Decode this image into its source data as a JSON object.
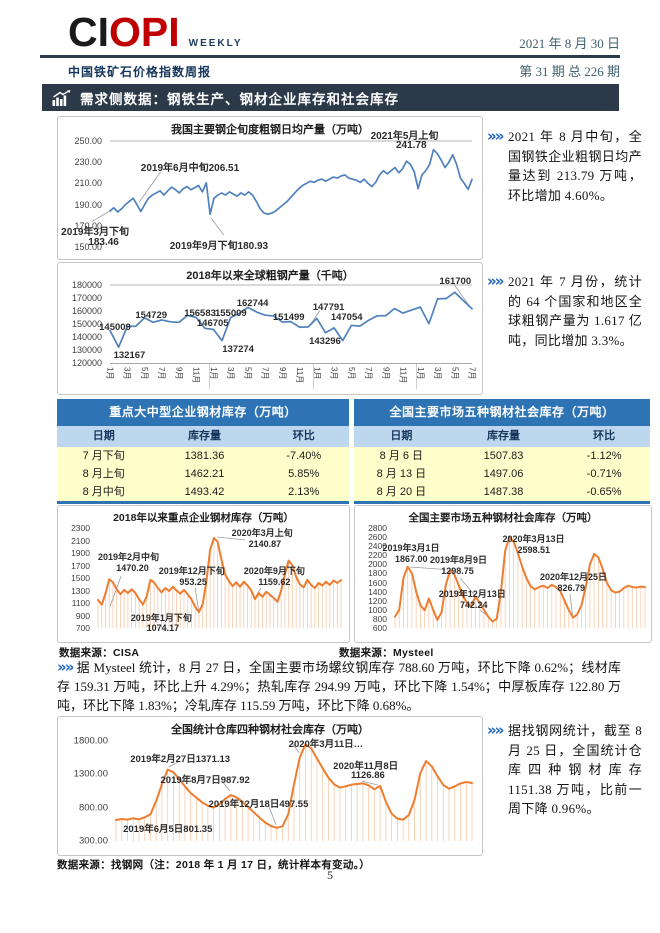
{
  "header": {
    "logo_primary": "CI",
    "logo_secondary": "OPI",
    "logo_weekly": "WEEKLY",
    "subtitle": "中国铁矿石价格指数周报",
    "date": "2021 年 8 月 30 日",
    "issue": "第 31 期 总 226 期"
  },
  "banner": {
    "title": "需求侧数据：钢铁生产、钢材企业库存和社会库存"
  },
  "ui": {
    "marker": "»»"
  },
  "bullets": [
    {
      "text": "2021 年 8 月中旬，全国钢铁企业粗钢日均产量达到 213.79 万吨，环比增加 4.60%。"
    },
    {
      "text": "2021 年 7 月份，统计的 64 个国家和地区全球粗钢产量为 1.617 亿吨，同比增加 3.3%。"
    },
    {
      "text": "据 Mysteel 统计，8 月 27 日，全国主要市场螺纹钢库存 788.60 万吨，环比下降 0.62%；线材库存 159.31 万吨，环比上升 4.29%；热轧库存 294.99 万吨，环比下降 1.54%；中厚板库存 122.80 万吨，环比下降 1.83%；冷轧库存 115.59 万吨，环比下降 0.68%。"
    },
    {
      "text": "据找钢网统计，截至 8 月 25 日，全国统计仓库四种钢材库存 1151.38 万吨，比前一周下降 0.96%。"
    }
  ],
  "tables": [
    {
      "title": "重点大中型企业钢材库存（万吨）",
      "headers": [
        "日期",
        "库存量",
        "环比"
      ],
      "rows": [
        [
          "7 月下旬",
          "1381.36",
          "-7.40%"
        ],
        [
          "8 月上旬",
          "1462.21",
          "5.85%"
        ],
        [
          "8 月中旬",
          "1493.42",
          "2.13%"
        ]
      ]
    },
    {
      "title": "全国主要市场五种钢材社会库存（万吨）",
      "headers": [
        "日期",
        "库存量",
        "环比"
      ],
      "rows": [
        [
          "8 月 6 日",
          "1507.83",
          "-1.12%"
        ],
        [
          "8 月 13 日",
          "1497.06",
          "-0.71%"
        ],
        [
          "8 月 20 日",
          "1487.38",
          "-0.65%"
        ]
      ]
    }
  ],
  "sources": {
    "cisa": "数据来源：CISA",
    "mysteel": "数据来源：Mysteel",
    "zhaogangwang": "数据来源：找钢网（注：2018 年 1 月 17 日，统计样本有变动。）"
  },
  "footer": {
    "page_number": "5"
  },
  "colors": {
    "logo_red": "#c00000",
    "banner_bg": "#2c3948",
    "blue_line": "#4f81bd",
    "orange_line": "#ed7d31",
    "orange_drop": "#f6c9a8",
    "table_title_bg": "#2e74b5",
    "table_head_bg": "#bdd7ee",
    "table_row_bg": "#ffffcc",
    "marker_blue": "#1b62b7",
    "header_text": "#41616e"
  },
  "chart_data": [
    {
      "type": "line",
      "title": "我国主要钢企旬度粗钢日均产量（万吨）",
      "ylabel": "万吨",
      "ylim": [
        150,
        250
      ],
      "grid_top": true,
      "color": "#4f81bd",
      "line_width": 1.7,
      "yticks": [
        [
          250,
          "250.00"
        ],
        [
          230,
          "230.00"
        ],
        [
          210,
          "210.00"
        ],
        [
          190,
          "190.00"
        ],
        [
          170,
          "170.00"
        ],
        [
          150,
          "150.00"
        ]
      ],
      "values": [
        184,
        187,
        183,
        186,
        190,
        193,
        196,
        190,
        183.46,
        190,
        196,
        199,
        201,
        203,
        199,
        203,
        206.51,
        204,
        201,
        205,
        207,
        204,
        206,
        208,
        202,
        210.5,
        180.93,
        196,
        199,
        201,
        199,
        202,
        200,
        198,
        201,
        199,
        202,
        199,
        193,
        186,
        182,
        181,
        182,
        184,
        187,
        190,
        193,
        197,
        201,
        205,
        208,
        210,
        212,
        211,
        213,
        214,
        212,
        214,
        216,
        215,
        217,
        218,
        215,
        214,
        213,
        211,
        214,
        210,
        207,
        211,
        218,
        222,
        219,
        222,
        225,
        220,
        224,
        231,
        228,
        221,
        205,
        218,
        222,
        228,
        241.78,
        238,
        232,
        225,
        230,
        237,
        228,
        215,
        210,
        204.4,
        213.79
      ],
      "annotations": [
        {
          "x": 72,
          "y": -13,
          "t": "2021年5月上旬"
        },
        {
          "x": 79,
          "y": -1,
          "t": "241.78"
        },
        {
          "x": 8.5,
          "y": 17,
          "t": "2019年6月中旬206.51"
        },
        {
          "x": -13.5,
          "y": 77,
          "t": "2019年3月下旬"
        },
        {
          "x": -6,
          "y": 91,
          "t": "183.46"
        },
        {
          "x": 16.5,
          "y": 91,
          "t": "2019年9月下旬180.93"
        }
      ],
      "leaders": [
        [
          14,
          29,
          8,
          58
        ],
        [
          -5,
          76,
          0.5,
          65
        ],
        [
          28,
          73,
          31.5,
          89
        ]
      ]
    },
    {
      "type": "line",
      "title": "2018年以来全球粗钢产量（千吨）",
      "ylabel": "千吨",
      "ylim": [
        120000,
        180000
      ],
      "grid_top": true,
      "color": "#4f81bd",
      "line_width": 1.7,
      "yticks": [
        [
          180000,
          "180000"
        ],
        [
          170000,
          "170000"
        ],
        [
          160000,
          "160000"
        ],
        [
          150000,
          "150000"
        ],
        [
          140000,
          "140000"
        ],
        [
          130000,
          "130000"
        ],
        [
          120000,
          "120000"
        ]
      ],
      "values": [
        145009,
        132167,
        148100,
        148300,
        154729,
        151300,
        153100,
        151700,
        151300,
        156583,
        155009,
        146705,
        145800,
        137274,
        155000,
        158100,
        162744,
        159200,
        156800,
        156200,
        151499,
        151800,
        147500,
        147791,
        154300,
        143296,
        147054,
        137200,
        148900,
        148400,
        152800,
        156300,
        156400,
        161900,
        158400,
        160700,
        163000,
        150300,
        169300,
        169600,
        174400,
        168000,
        161700
      ],
      "xticks": [
        [
          0,
          "1月"
        ],
        [
          2,
          "3月"
        ],
        [
          4,
          "5月"
        ],
        [
          6,
          "7月"
        ],
        [
          8,
          "9月"
        ],
        [
          10,
          "11月"
        ],
        [
          12,
          "1月"
        ],
        [
          14,
          "3月"
        ],
        [
          16,
          "5月"
        ],
        [
          18,
          "7月"
        ],
        [
          20,
          "9月"
        ],
        [
          22,
          "11月"
        ],
        [
          24,
          "1月"
        ],
        [
          26,
          "3月"
        ],
        [
          28,
          "5月"
        ],
        [
          30,
          "7月"
        ],
        [
          32,
          "9月"
        ],
        [
          34,
          "11月"
        ],
        [
          36,
          "1月"
        ],
        [
          38,
          "3月"
        ],
        [
          40,
          "5月"
        ],
        [
          42,
          "7月"
        ]
      ],
      "xseps": [
        27.38,
        55.95,
        84.52
      ],
      "annotations": [
        {
          "x": -3,
          "y": 48,
          "t": "145009"
        },
        {
          "x": 1,
          "y": 83,
          "t": "132167"
        },
        {
          "x": 7,
          "y": 32,
          "t": "154729"
        },
        {
          "x": 20.5,
          "y": 29,
          "t": "156583"
        },
        {
          "x": 29,
          "y": 29,
          "t": "155009"
        },
        {
          "x": 24,
          "y": 42,
          "t": "146705"
        },
        {
          "x": 35,
          "y": 17,
          "t": "162744"
        },
        {
          "x": 31,
          "y": 76,
          "t": "137274"
        },
        {
          "x": 45,
          "y": 34,
          "t": "151499"
        },
        {
          "x": 56,
          "y": 22,
          "t": "147791"
        },
        {
          "x": 61,
          "y": 35,
          "t": "147054"
        },
        {
          "x": 55,
          "y": 65,
          "t": "143296"
        },
        {
          "x": 91,
          "y": -12,
          "t": "161700"
        }
      ],
      "leaders": [
        [
          58,
          33,
          55.3,
          51
        ],
        [
          95,
          -1,
          99.3,
          27
        ]
      ]
    },
    {
      "type": "line",
      "title": "2018年以来重点企业钢材库存（万吨）",
      "ylabel": "万吨",
      "ylim": [
        700,
        2300
      ],
      "color": "#ed7d31",
      "line_width": 2,
      "drops": true,
      "drop_color": "#f6c9a8",
      "yticks": [
        [
          2300,
          "2300"
        ],
        [
          2100,
          "2100"
        ],
        [
          1900,
          "1900"
        ],
        [
          1700,
          "1700"
        ],
        [
          1500,
          "1500"
        ],
        [
          1300,
          "1300"
        ],
        [
          1100,
          "1100"
        ],
        [
          900,
          "900"
        ],
        [
          700,
          "700"
        ]
      ],
      "values": [
        1150,
        1074,
        1250,
        1480,
        1430,
        1320,
        1240,
        1310,
        1260,
        1320,
        1260,
        1160,
        1074.17,
        1200,
        1470.2,
        1430,
        1340,
        1270,
        1340,
        1290,
        1360,
        1300,
        1250,
        1310,
        1240,
        1160,
        1040,
        953.25,
        1080,
        1450,
        1950,
        2140.87,
        2080,
        1800,
        1560,
        1450,
        1370,
        1430,
        1360,
        1440,
        1380,
        1300,
        1159.62,
        1260,
        1200,
        1280,
        1230,
        1180,
        1120,
        1300,
        1560,
        1780,
        1700,
        1520,
        1400,
        1350,
        1470,
        1390,
        1340,
        1420,
        1380,
        1440,
        1390,
        1460,
        1420,
        1465
      ],
      "annotations": [
        {
          "x": 0,
          "y": 22,
          "t": "2019年2月中旬"
        },
        {
          "x": 7.5,
          "y": 35,
          "t": "1470.20"
        },
        {
          "x": 55,
          "y": -2,
          "t": "2020年3月上旬"
        },
        {
          "x": 62,
          "y": 11,
          "t": "2140.87"
        },
        {
          "x": 25,
          "y": 36,
          "t": "2019年12月下旬"
        },
        {
          "x": 33.5,
          "y": 49,
          "t": "953.25"
        },
        {
          "x": 60,
          "y": 36,
          "t": "2020年9月下旬"
        },
        {
          "x": 66,
          "y": 49,
          "t": "1159.62"
        },
        {
          "x": 13.5,
          "y": 83,
          "t": "2019年1月下旬"
        },
        {
          "x": 20,
          "y": 95,
          "t": "1074.17"
        }
      ],
      "leaders": [
        [
          9.5,
          48,
          5,
          78
        ],
        [
          60.5,
          12,
          49,
          9
        ],
        [
          40,
          60,
          41.4,
          82
        ],
        [
          67,
          60,
          64.8,
          69
        ]
      ]
    },
    {
      "type": "line",
      "title": "全国主要市场五种钢材社会库存（万吨）",
      "ylabel": "万吨",
      "ylim": [
        600,
        2800
      ],
      "color": "#ed7d31",
      "line_width": 2,
      "drops": true,
      "drop_color": "#f6c9a8",
      "yticks": [
        [
          2800,
          "2800"
        ],
        [
          2600,
          "2600"
        ],
        [
          2400,
          "2400"
        ],
        [
          2200,
          "2200"
        ],
        [
          2000,
          "2000"
        ],
        [
          1800,
          "1800"
        ],
        [
          1600,
          "1600"
        ],
        [
          1400,
          "1400"
        ],
        [
          1200,
          "1200"
        ],
        [
          1000,
          "1000"
        ],
        [
          800,
          "800"
        ],
        [
          600,
          "600"
        ]
      ],
      "values": [
        850,
        1000,
        1700,
        1950,
        1800,
        1400,
        1100,
        990,
        1250,
        1000,
        780,
        950,
        1550,
        1867,
        1780,
        1550,
        1320,
        1150,
        1080,
        1298.75,
        1150,
        1000,
        850,
        742.24,
        800,
        1400,
        2300,
        2598.51,
        2500,
        2250,
        1950,
        1700,
        1520,
        1450,
        1500,
        1530,
        1480,
        1550,
        1500,
        1420,
        1200,
        1000,
        826.79,
        900,
        1100,
        1500,
        2000,
        2230,
        2150,
        1900,
        1600,
        1430,
        1380,
        1400,
        1480,
        1530,
        1500,
        1490,
        1510,
        1500
      ],
      "annotations": [
        {
          "x": -5,
          "y": 13,
          "t": "2019年3月1日"
        },
        {
          "x": 0,
          "y": 26,
          "t": "1867.00"
        },
        {
          "x": 14,
          "y": 25,
          "t": "2019年8月9日"
        },
        {
          "x": 18.5,
          "y": 38,
          "t": "1298.75"
        },
        {
          "x": 43,
          "y": 4,
          "t": "2020年3月13日"
        },
        {
          "x": 49,
          "y": 17,
          "t": "2598.51"
        },
        {
          "x": 17.5,
          "y": 59,
          "t": "2019年12月13日"
        },
        {
          "x": 26,
          "y": 72,
          "t": "742.24"
        },
        {
          "x": 58,
          "y": 42,
          "t": "2020年12月25日"
        },
        {
          "x": 65,
          "y": 55,
          "t": "826.79"
        }
      ],
      "leaders": [
        [
          6,
          39,
          20,
          41.5
        ],
        [
          26,
          50,
          31.5,
          66
        ],
        [
          48,
          15,
          46,
          11
        ],
        [
          34,
          82,
          38.5,
          91
        ],
        [
          70,
          66,
          71,
          87
        ]
      ]
    },
    {
      "type": "line",
      "title": "全国统计仓库四种钢材社会库存（万吨）",
      "ylabel": "万吨",
      "ylim": [
        300,
        1800
      ],
      "color": "#ed7d31",
      "line_width": 2,
      "drops": true,
      "drop_color": "#f6c9a8",
      "yticks": [
        [
          1800,
          "1800.00"
        ],
        [
          1300,
          "1300.00"
        ],
        [
          800,
          "800.00"
        ],
        [
          300,
          "300.00"
        ]
      ],
      "values": [
        615,
        630,
        620,
        640,
        625,
        655,
        700,
        900,
        1150,
        1371.13,
        1330,
        1230,
        1120,
        1020,
        950,
        880,
        830,
        801.35,
        850,
        930,
        987.92,
        955,
        890,
        810,
        730,
        650,
        575,
        525,
        497.55,
        520,
        700,
        1150,
        1550,
        1750,
        1690,
        1540,
        1390,
        1250,
        1150,
        1100,
        1120,
        1145,
        1155,
        1165,
        1135,
        1075,
        1126.86,
        890,
        710,
        635,
        620,
        690,
        920,
        1320,
        1500,
        1420,
        1270,
        1140,
        1085,
        1120,
        1165,
        1185,
        1170
      ],
      "annotations": [
        {
          "x": 4,
          "y": 10,
          "t": "2019年2月27日1371.13"
        },
        {
          "x": 12.5,
          "y": 31,
          "t": "2019年8月7日987.92"
        },
        {
          "x": 48.5,
          "y": -5,
          "t": "2020年3月11日…"
        },
        {
          "x": 26,
          "y": 55,
          "t": "2019年12月18日497.55"
        },
        {
          "x": 61,
          "y": 17,
          "t": "2020年11月8日"
        },
        {
          "x": 66,
          "y": 29,
          "t": "1126.86"
        },
        {
          "x": 2,
          "y": 80,
          "t": "2019年6月5日801.35"
        }
      ],
      "leaders": [
        [
          18,
          20,
          14.8,
          26
        ],
        [
          30,
          41,
          32,
          50
        ],
        [
          49.5,
          2,
          51.5,
          12
        ],
        [
          43,
          66,
          45,
          84
        ],
        [
          69,
          40,
          73.5,
          44
        ]
      ]
    }
  ]
}
